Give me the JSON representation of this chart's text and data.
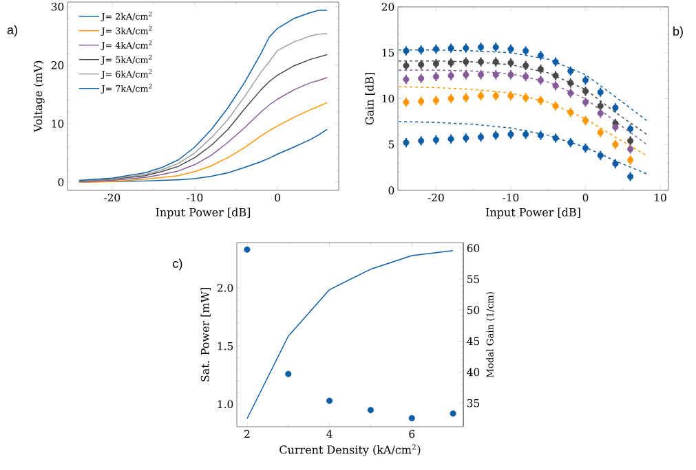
{
  "chart_data": [
    {
      "type": "line",
      "annotations": [
        "a)"
      ],
      "xlabel": "Input Power [dB]",
      "ylabel": "Voltage (mV)",
      "x": [
        -24,
        -20,
        -16,
        -14,
        -12,
        -10,
        -8,
        -6,
        -4,
        -2,
        -1,
        0,
        2,
        4,
        5,
        6
      ],
      "series": [
        {
          "name": "J= 2kA/cm$^{2}$",
          "color": "#0c5da5",
          "values": [
            0.0,
            0.1,
            0.2,
            0.3,
            0.4,
            0.6,
            1.0,
            1.6,
            2.5,
            3.5,
            4.1,
            4.8,
            6.0,
            7.3,
            8.1,
            9.0
          ]
        },
        {
          "name": "J= 3kA/cm$^{2}$",
          "color": "#ff9500",
          "values": [
            0.0,
            0.1,
            0.5,
            0.8,
            1.1,
            1.8,
            2.8,
            4.2,
            5.9,
            7.9,
            8.8,
            9.6,
            11.1,
            12.4,
            13.0,
            13.6
          ]
        },
        {
          "name": "J= 4kA/cm$^{2}$",
          "color": "#845b97",
          "values": [
            0.1,
            0.3,
            0.8,
            1.3,
            1.9,
            3.0,
            4.6,
            6.8,
            9.3,
            12.0,
            13.2,
            14.2,
            15.8,
            17.0,
            17.4,
            17.9
          ]
        },
        {
          "name": "J= 5kA/cm$^{2}$",
          "color": "#474747",
          "values": [
            0.2,
            0.5,
            1.1,
            1.8,
            2.7,
            4.2,
            6.3,
            9.0,
            12.5,
            15.8,
            17.2,
            18.3,
            19.9,
            21.0,
            21.4,
            21.8
          ]
        },
        {
          "name": "J= 6kA/cm$^{2}$",
          "color": "#9e9e9e",
          "values": [
            0.2,
            0.6,
            1.3,
            2.1,
            3.2,
            5.0,
            7.6,
            10.7,
            14.6,
            18.8,
            20.6,
            22.5,
            24.0,
            25.0,
            25.3,
            25.4
          ]
        },
        {
          "name": "J= 7kA/cm$^{2}$",
          "color": "#0c5da5",
          "values": [
            0.3,
            0.7,
            1.6,
            2.5,
            3.8,
            6.0,
            9.0,
            12.7,
            17.0,
            22.0,
            24.8,
            26.3,
            28.0,
            29.0,
            29.4,
            29.4
          ]
        }
      ],
      "xlim": [
        -25.4,
        7.4
      ],
      "ylim": [
        -1.4,
        30.8
      ],
      "xticks": [
        -20,
        -10,
        0
      ],
      "yticks": [
        0,
        10,
        20,
        30
      ],
      "legend": "top left"
    },
    {
      "type": "scatter",
      "annotations": [
        "b)"
      ],
      "xlabel": "Input Power [dB]",
      "ylabel": "Gain [dB]",
      "x": [
        -24,
        -22,
        -20,
        -18,
        -16,
        -14,
        -12,
        -10,
        -8,
        -6,
        -4,
        -2,
        0,
        2,
        4,
        6
      ],
      "series": [
        {
          "color": "#0c5da5",
          "marker": "circle",
          "values": [
            15.2,
            15.3,
            15.4,
            15.5,
            15.5,
            15.6,
            15.6,
            15.4,
            15.2,
            14.7,
            14.0,
            13.0,
            12.0,
            10.7,
            9.0,
            6.7
          ],
          "errors": [
            0.5,
            0.5,
            0.5,
            0.5,
            0.5,
            0.5,
            0.5,
            0.5,
            0.5,
            0.5,
            0.5,
            0.5,
            0.5,
            0.5,
            0.5,
            0.5
          ]
        },
        {
          "color": "#474747",
          "marker": "circle",
          "values": [
            13.6,
            13.7,
            13.8,
            13.9,
            14.0,
            14.0,
            14.0,
            13.9,
            13.6,
            13.2,
            12.5,
            11.7,
            10.8,
            9.2,
            7.3,
            5.4
          ],
          "errors": [
            0.5,
            0.5,
            0.5,
            0.5,
            0.5,
            0.5,
            0.5,
            0.5,
            0.5,
            0.5,
            0.5,
            0.5,
            0.5,
            0.5,
            0.5,
            0.5
          ]
        },
        {
          "color": "#845b97",
          "marker": "circle",
          "values": [
            12.1,
            12.2,
            12.4,
            12.5,
            12.6,
            12.6,
            12.6,
            12.6,
            12.4,
            12.0,
            11.4,
            10.6,
            9.6,
            8.4,
            6.9,
            4.5
          ],
          "errors": [
            0.5,
            0.5,
            0.5,
            0.5,
            0.5,
            0.5,
            0.5,
            0.5,
            0.5,
            0.5,
            0.5,
            0.5,
            0.5,
            0.5,
            0.5,
            0.5
          ]
        },
        {
          "color": "#ff9500",
          "marker": "circle",
          "values": [
            9.6,
            9.7,
            9.8,
            10.0,
            10.1,
            10.3,
            10.3,
            10.3,
            10.1,
            9.8,
            9.2,
            8.5,
            7.6,
            6.3,
            5.0,
            3.3
          ],
          "errors": [
            0.5,
            0.5,
            0.5,
            0.5,
            0.5,
            0.5,
            0.5,
            0.5,
            0.5,
            0.5,
            0.5,
            0.5,
            0.5,
            0.5,
            0.5,
            0.5
          ]
        },
        {
          "color": "#0c5da5",
          "marker": "circle",
          "values": [
            5.2,
            5.4,
            5.5,
            5.6,
            5.7,
            5.8,
            6.0,
            6.1,
            6.1,
            6.0,
            5.7,
            5.2,
            4.6,
            3.8,
            2.9,
            1.5
          ],
          "errors": [
            0.5,
            0.5,
            0.5,
            0.5,
            0.5,
            0.5,
            0.5,
            0.5,
            0.5,
            0.5,
            0.5,
            0.5,
            0.5,
            0.5,
            0.5,
            0.5
          ]
        },
        {
          "type": "line",
          "line_style": "dashed",
          "color": "#0c5da5",
          "x": [
            -25,
            -20,
            -15,
            -10,
            -5,
            0,
            4,
            8.2
          ],
          "values": [
            15.3,
            15.3,
            15.2,
            15.0,
            14.3,
            12.6,
            10.2,
            7.6
          ]
        },
        {
          "type": "line",
          "line_style": "dashed",
          "color": "#474747",
          "x": [
            -25,
            -20,
            -15,
            -10,
            -5,
            0,
            4,
            8.2
          ],
          "values": [
            14.1,
            14.1,
            14.0,
            13.7,
            12.8,
            11.0,
            8.5,
            6.1
          ]
        },
        {
          "type": "line",
          "line_style": "dashed",
          "color": "#845b97",
          "x": [
            -25,
            -20,
            -15,
            -10,
            -5,
            0,
            4,
            8.2
          ],
          "values": [
            13.1,
            13.1,
            13.0,
            12.7,
            11.8,
            10.0,
            7.5,
            5.0
          ]
        },
        {
          "type": "line",
          "line_style": "dashed",
          "color": "#ff9500",
          "x": [
            -25,
            -20,
            -15,
            -10,
            -5,
            0,
            4,
            8.2
          ],
          "values": [
            11.3,
            11.2,
            11.0,
            10.6,
            9.6,
            7.8,
            5.8,
            3.8
          ]
        },
        {
          "type": "line",
          "line_style": "dashed",
          "color": "#0c5da5",
          "x": [
            -25,
            -20,
            -15,
            -10,
            -5,
            0,
            4,
            8.2
          ],
          "values": [
            7.5,
            7.4,
            7.2,
            6.8,
            6.0,
            4.7,
            3.2,
            1.8
          ]
        }
      ],
      "xlim": [
        -25.1,
        11.1
      ],
      "ylim": [
        0,
        20
      ],
      "xticks": [
        -20,
        -10,
        0,
        10
      ],
      "yticks": [
        0,
        5,
        10,
        15,
        20
      ]
    },
    {
      "type": "scatter",
      "annotations": [
        "c)"
      ],
      "xlabel": "Current Density (kA/cm$^{2}$)",
      "ylabel": "Sat. Power [mW]",
      "y2label": "Modal Gain (1/cm)",
      "x": [
        2,
        3,
        4,
        5,
        6,
        7
      ],
      "series": [
        {
          "color": "#0c5da5",
          "marker": "circle",
          "values": [
            2.33,
            1.26,
            1.03,
            0.95,
            0.88,
            0.92
          ]
        },
        {
          "type": "line",
          "axis": "y2",
          "color": "#0c5da5",
          "values": [
            32.5,
            45.8,
            53.3,
            56.6,
            58.8,
            59.6
          ]
        }
      ],
      "xlim": [
        1.75,
        7.25
      ],
      "ylim": [
        0.807,
        2.39
      ],
      "y2lim": [
        31.2,
        60.9
      ],
      "xticks": [
        2,
        4,
        6
      ],
      "yticks": [
        {
          "value": 1,
          "label": "1.0"
        },
        {
          "value": 1.5,
          "label": "1.5"
        },
        {
          "value": 2,
          "label": "2.0"
        }
      ],
      "y2ticks": [
        35,
        40,
        45,
        50,
        55,
        60
      ]
    }
  ]
}
